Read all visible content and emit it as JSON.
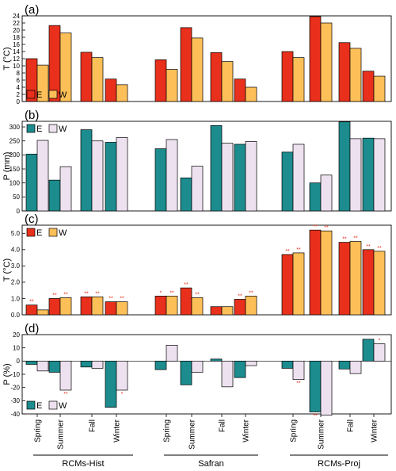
{
  "colors": {
    "E_T": "#e8301c",
    "W_T": "#fdc058",
    "E_P": "#1c8c8e",
    "W_P": "#ede1ef"
  },
  "chart_data": [
    {
      "panel": "(a)",
      "type": "bar",
      "ylabel": "T (°C)",
      "ylim": [
        0,
        24
      ],
      "yticks": [
        0,
        2,
        4,
        6,
        8,
        10,
        12,
        14,
        16,
        18,
        20,
        22,
        24
      ],
      "legend": [
        "E",
        "W"
      ],
      "legend_position": "bottom-left",
      "groups": [
        "RCMs-Hist",
        "Safran",
        "RCMs-Proj"
      ],
      "categories": [
        "Spring",
        "Summer",
        "Fall",
        "Winter"
      ],
      "series": [
        {
          "name": "E",
          "values": [
            [
              12.0,
              21.3,
              13.8,
              6.3
            ],
            [
              11.7,
              20.7,
              13.7,
              6.3
            ],
            [
              14.0,
              23.8,
              16.5,
              8.5
            ]
          ]
        },
        {
          "name": "W",
          "values": [
            [
              10.2,
              19.2,
              12.3,
              4.7
            ],
            [
              9.0,
              17.8,
              11.2,
              4.0
            ],
            [
              12.3,
              22.0,
              14.9,
              7.1
            ]
          ]
        }
      ]
    },
    {
      "panel": "(b)",
      "type": "bar",
      "ylabel": "P (mm)",
      "ylim": [
        0,
        320
      ],
      "yticks": [
        0,
        50,
        100,
        150,
        200,
        250,
        300
      ],
      "legend": [
        "E",
        "W"
      ],
      "legend_position": "top-left",
      "groups": [
        "RCMs-Hist",
        "Safran",
        "RCMs-Proj"
      ],
      "categories": [
        "Spring",
        "Summer",
        "Fall",
        "Winter"
      ],
      "series": [
        {
          "name": "E",
          "values": [
            [
              203,
              110,
              290,
              245
            ],
            [
              222,
              118,
              305,
              238
            ],
            [
              210,
              100,
              318,
              260
            ]
          ]
        },
        {
          "name": "W",
          "values": [
            [
              252,
              158,
              250,
              262
            ],
            [
              255,
              160,
              242,
              248
            ],
            [
              238,
              128,
              258,
              258
            ]
          ]
        }
      ]
    },
    {
      "panel": "(c)",
      "type": "bar",
      "ylabel": "T (°C)",
      "ylim": [
        0,
        5.5
      ],
      "yticks": [
        "0.0",
        "1.0",
        "2.0",
        "3.0",
        "4.0",
        "5.0"
      ],
      "legend": [
        "E",
        "W"
      ],
      "legend_position": "top-left",
      "groups": [
        "RCMs-Hist",
        "Safran",
        "RCMs-Proj"
      ],
      "categories": [
        "Spring",
        "Summer",
        "Fall",
        "Winter"
      ],
      "series": [
        {
          "name": "E",
          "values": [
            [
              0.6,
              1.0,
              1.1,
              0.8
            ],
            [
              1.15,
              1.65,
              0.5,
              0.95
            ],
            [
              3.7,
              5.2,
              4.45,
              4.0
            ]
          ],
          "significance": [
            [
              "**",
              "**",
              "**",
              "**"
            ],
            [
              "*",
              "**",
              "",
              "**"
            ],
            [
              "**",
              "**",
              "**",
              "**"
            ]
          ]
        },
        {
          "name": "W",
          "values": [
            [
              0.3,
              1.05,
              1.1,
              0.8
            ],
            [
              1.15,
              1.05,
              0.5,
              1.15
            ],
            [
              3.8,
              5.15,
              4.5,
              3.9
            ]
          ],
          "significance": [
            [
              "",
              "**",
              "**",
              "**"
            ],
            [
              "**",
              "**",
              "",
              "**"
            ],
            [
              "**",
              "**",
              "**",
              "**"
            ]
          ]
        }
      ]
    },
    {
      "panel": "(d)",
      "type": "bar",
      "ylabel": "P (%)",
      "ylim": [
        -40,
        20
      ],
      "yticks": [
        -40,
        -30,
        -20,
        -10,
        0,
        10,
        20
      ],
      "legend": [
        "E",
        "W"
      ],
      "legend_position": "bottom-left",
      "groups": [
        "RCMs-Hist",
        "Safran",
        "RCMs-Proj"
      ],
      "categories": [
        "Spring",
        "Summer",
        "Fall",
        "Winter"
      ],
      "series": [
        {
          "name": "E",
          "values": [
            [
              -2.5,
              -8.5,
              -4.5,
              -35
            ],
            [
              -6.5,
              -18,
              1.5,
              -12.5
            ],
            [
              -5.5,
              -38.5,
              -6,
              16.5
            ]
          ],
          "significance": [
            [
              "",
              "",
              "",
              ""
            ],
            [
              "",
              "",
              "",
              ""
            ],
            [
              "",
              "**",
              "",
              ""
            ]
          ]
        },
        {
          "name": "W",
          "values": [
            [
              -7.5,
              -22,
              -5.5,
              -22
            ],
            [
              12,
              -8.5,
              -19.5,
              -3.5
            ],
            [
              -14,
              -41,
              -9.5,
              13
            ]
          ],
          "significance": [
            [
              "",
              "**",
              "",
              "*"
            ],
            [
              "",
              "",
              "",
              ""
            ],
            [
              "**",
              "",
              "",
              "*"
            ]
          ]
        }
      ]
    }
  ]
}
